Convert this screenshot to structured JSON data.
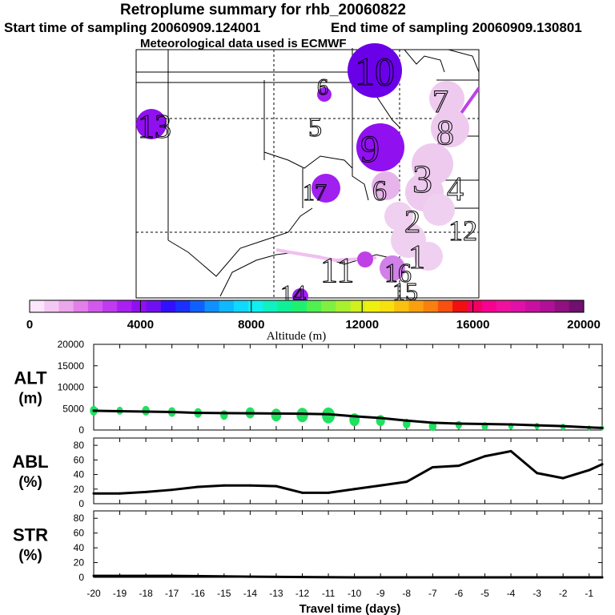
{
  "title": "Retroplume summary for rhb_20060822",
  "start_label": "Start time of sampling 20060909.124001",
  "end_label": "End time of sampling 20060909.130801",
  "met_label": "Meteorological data used is ECMWF",
  "colorbar": {
    "label": "Altitude (m)",
    "ticks": [
      "0",
      "4000",
      "8000",
      "12000",
      "16000",
      "20000"
    ],
    "colors": [
      "#fbe6fb",
      "#f4c8f4",
      "#eca6ec",
      "#e27fe9",
      "#d359ec",
      "#c03af0",
      "#a920f0",
      "#9010f0",
      "#7010f0",
      "#3010ff",
      "#1a30ff",
      "#1060ff",
      "#1090ff",
      "#10b8ff",
      "#10d8ff",
      "#10f0f0",
      "#10f0c0",
      "#10f098",
      "#20f070",
      "#50f050",
      "#80f040",
      "#a8f030",
      "#d0f020",
      "#f0f010",
      "#f8e010",
      "#f8c010",
      "#f8a010",
      "#f88010",
      "#f85010",
      "#f01010",
      "#f00060",
      "#f80090",
      "#f010a0",
      "#e010a8",
      "#c810a0",
      "#b01098",
      "#901080",
      "#701070"
    ]
  },
  "map": {
    "labels": [
      "10",
      "6",
      "5",
      "13",
      "9",
      "7",
      "8",
      "6",
      "3",
      "4",
      "2",
      "17",
      "1",
      "11",
      "16",
      "14",
      "12",
      "15"
    ],
    "plume_color": "#a000f0"
  },
  "xlabel": "Travel time (days)",
  "chart_data": [
    {
      "type": "line",
      "panel": "ALT",
      "ylabel": "ALT\n(m)",
      "ylim": [
        0,
        20000
      ],
      "yticks": [
        "20000",
        "15000",
        "10000",
        "5000",
        "0"
      ],
      "xlim": [
        -20,
        -0.5
      ],
      "x": [
        -20,
        -19,
        -18,
        -17,
        -16,
        -15,
        -14,
        -13,
        -12,
        -11,
        -10,
        -9,
        -8,
        -7,
        -6,
        -5,
        -4,
        -3,
        -2,
        -1,
        -0.5
      ],
      "values": [
        4500,
        4400,
        4300,
        4200,
        4000,
        3950,
        3900,
        3850,
        3800,
        3700,
        3200,
        2800,
        2200,
        1700,
        1500,
        1400,
        1300,
        1100,
        900,
        600,
        500
      ],
      "spread_color": "#20e060",
      "spread": [
        {
          "x": -20,
          "y": 4500,
          "r": 6
        },
        {
          "x": -19,
          "y": 4500,
          "r": 5
        },
        {
          "x": -18,
          "y": 4500,
          "r": 6
        },
        {
          "x": -17,
          "y": 4200,
          "r": 6
        },
        {
          "x": -16,
          "y": 4000,
          "r": 6
        },
        {
          "x": -15,
          "y": 3500,
          "r": 6
        },
        {
          "x": -14,
          "y": 4000,
          "r": 7
        },
        {
          "x": -13,
          "y": 3500,
          "r": 8
        },
        {
          "x": -12,
          "y": 3500,
          "r": 9
        },
        {
          "x": -11,
          "y": 3400,
          "r": 10
        },
        {
          "x": -10,
          "y": 2400,
          "r": 8
        },
        {
          "x": -9,
          "y": 2200,
          "r": 7
        },
        {
          "x": -8,
          "y": 1500,
          "r": 6
        },
        {
          "x": -7,
          "y": 900,
          "r": 6
        },
        {
          "x": -6,
          "y": 1200,
          "r": 5
        },
        {
          "x": -5,
          "y": 900,
          "r": 5
        },
        {
          "x": -4,
          "y": 900,
          "r": 4
        },
        {
          "x": -3,
          "y": 900,
          "r": 4
        },
        {
          "x": -2,
          "y": 700,
          "r": 4
        },
        {
          "x": -1,
          "y": 500,
          "r": 3
        },
        {
          "x": -0.5,
          "y": 500,
          "r": 3
        }
      ]
    },
    {
      "type": "line",
      "panel": "ABL",
      "ylabel": "ABL\n(%)",
      "ylim": [
        0,
        90
      ],
      "yticks": [
        "80",
        "60",
        "40",
        "20",
        "0"
      ],
      "xlim": [
        -20,
        -0.5
      ],
      "x": [
        -20,
        -19,
        -18,
        -17,
        -16,
        -15,
        -14,
        -13,
        -12,
        -11,
        -10,
        -9,
        -8,
        -7,
        -6,
        -5,
        -4,
        -3,
        -2,
        -1,
        -0.5
      ],
      "values": [
        14,
        14,
        16,
        19,
        23,
        25,
        25,
        24,
        15,
        15,
        20,
        25,
        30,
        50,
        52,
        65,
        72,
        42,
        35,
        46,
        54
      ]
    },
    {
      "type": "line",
      "panel": "STR",
      "ylabel": "STR\n(%)",
      "ylim": [
        0,
        90
      ],
      "yticks": [
        "80",
        "60",
        "40",
        "20",
        "0"
      ],
      "xlim": [
        -20,
        -0.5
      ],
      "x": [
        -20,
        -17,
        -14,
        -10,
        -5,
        -0.5
      ],
      "values": [
        2,
        2,
        1,
        0,
        0,
        0
      ]
    }
  ],
  "xticks": [
    "-20",
    "-19",
    "-18",
    "-17",
    "-16",
    "-15",
    "-14",
    "-13",
    "-12",
    "-11",
    "-10",
    "-9",
    "-8",
    "-7",
    "-6",
    "-5",
    "-4",
    "-3",
    "-2",
    "-1"
  ]
}
